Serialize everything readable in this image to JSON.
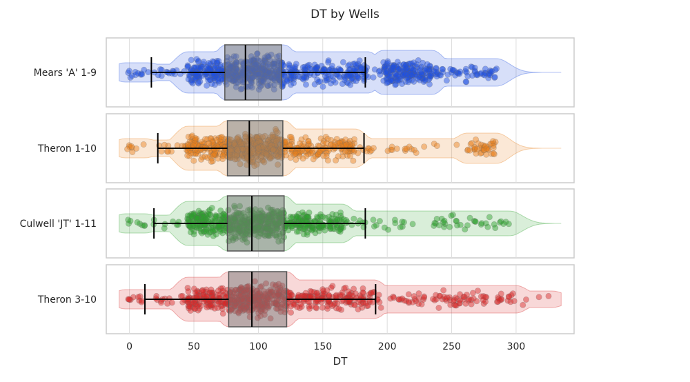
{
  "chart_data": {
    "type": "scatter",
    "title": "DT by Wells",
    "xlabel": "DT",
    "ylabel": "",
    "xlim": [
      -18,
      345
    ],
    "xticks": [
      0,
      50,
      100,
      150,
      200,
      250,
      300
    ],
    "grid": true,
    "legend": "none",
    "series": [
      {
        "name": "Mears 'A' 1-9",
        "color": "#1f4fe0",
        "box": {
          "whisker_low": 17,
          "q1": 74,
          "median": 90,
          "q3": 118,
          "whisker_high": 183
        },
        "clusters": [
          {
            "lo": -3,
            "hi": 15,
            "n": 12,
            "spread": 0.35
          },
          {
            "lo": 17,
            "hi": 45,
            "n": 15,
            "spread": 0.3
          },
          {
            "lo": 45,
            "hi": 75,
            "n": 150,
            "spread": 0.75
          },
          {
            "lo": 75,
            "hi": 120,
            "n": 320,
            "spread": 1.0
          },
          {
            "lo": 120,
            "hi": 185,
            "n": 180,
            "spread": 0.75
          },
          {
            "lo": 185,
            "hi": 195,
            "n": 6,
            "spread": 0.35
          },
          {
            "lo": 197,
            "hi": 235,
            "n": 180,
            "spread": 0.8
          },
          {
            "lo": 235,
            "hi": 285,
            "n": 60,
            "spread": 0.5
          }
        ]
      },
      {
        "name": "Theron 1-10",
        "color": "#e8801c",
        "box": {
          "whisker_low": 22,
          "q1": 76,
          "median": 93,
          "q3": 119,
          "whisker_high": 182
        },
        "clusters": [
          {
            "lo": -3,
            "hi": 12,
            "n": 8,
            "spread": 0.35
          },
          {
            "lo": 20,
            "hi": 45,
            "n": 12,
            "spread": 0.3
          },
          {
            "lo": 45,
            "hi": 76,
            "n": 140,
            "spread": 0.8
          },
          {
            "lo": 76,
            "hi": 120,
            "n": 300,
            "spread": 1.0
          },
          {
            "lo": 120,
            "hi": 175,
            "n": 160,
            "spread": 0.7
          },
          {
            "lo": 175,
            "hi": 255,
            "n": 25,
            "spread": 0.35
          },
          {
            "lo": 262,
            "hi": 285,
            "n": 40,
            "spread": 0.55
          }
        ]
      },
      {
        "name": "Culwell 'JT' 1-11",
        "color": "#2ca02c",
        "box": {
          "whisker_low": 19,
          "q1": 76,
          "median": 95,
          "q3": 120,
          "whisker_high": 183
        },
        "clusters": [
          {
            "lo": -3,
            "hi": 12,
            "n": 8,
            "spread": 0.35
          },
          {
            "lo": 18,
            "hi": 45,
            "n": 8,
            "spread": 0.3
          },
          {
            "lo": 45,
            "hi": 76,
            "n": 160,
            "spread": 0.8
          },
          {
            "lo": 76,
            "hi": 120,
            "n": 320,
            "spread": 1.0
          },
          {
            "lo": 120,
            "hi": 165,
            "n": 160,
            "spread": 0.7
          },
          {
            "lo": 165,
            "hi": 295,
            "n": 60,
            "spread": 0.45
          }
        ]
      },
      {
        "name": "Theron 3-10",
        "color": "#d62728",
        "box": {
          "whisker_low": 12,
          "q1": 77,
          "median": 95,
          "q3": 122,
          "whisker_high": 191
        },
        "clusters": [
          {
            "lo": -3,
            "hi": 15,
            "n": 10,
            "spread": 0.35
          },
          {
            "lo": 15,
            "hi": 45,
            "n": 15,
            "spread": 0.35
          },
          {
            "lo": 45,
            "hi": 77,
            "n": 130,
            "spread": 0.8
          },
          {
            "lo": 77,
            "hi": 122,
            "n": 280,
            "spread": 1.0
          },
          {
            "lo": 122,
            "hi": 190,
            "n": 170,
            "spread": 0.7
          },
          {
            "lo": 190,
            "hi": 300,
            "n": 90,
            "spread": 0.5
          },
          {
            "lo": 305,
            "hi": 328,
            "n": 4,
            "spread": 0.3
          }
        ]
      }
    ]
  }
}
